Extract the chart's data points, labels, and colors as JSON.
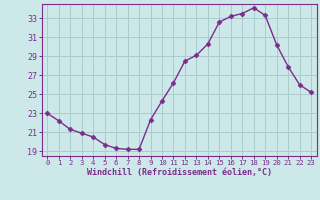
{
  "x": [
    0,
    1,
    2,
    3,
    4,
    5,
    6,
    7,
    8,
    9,
    10,
    11,
    12,
    13,
    14,
    15,
    16,
    17,
    18,
    19,
    20,
    21,
    22,
    23
  ],
  "y": [
    23.0,
    22.2,
    21.3,
    20.9,
    20.5,
    19.7,
    19.3,
    19.2,
    19.2,
    22.3,
    24.3,
    26.2,
    28.5,
    29.1,
    30.3,
    32.6,
    33.2,
    33.5,
    34.1,
    33.3,
    30.2,
    27.9,
    26.0,
    25.2
  ],
  "line_color": "#7b2d8b",
  "marker": "D",
  "marker_size": 2.5,
  "bg_color": "#cce8e8",
  "grid_color": "#aacccc",
  "xlabel": "Windchill (Refroidissement éolien,°C)",
  "xlim": [
    -0.5,
    23.5
  ],
  "ylim": [
    18.5,
    34.5
  ],
  "yticks": [
    19,
    21,
    23,
    25,
    27,
    29,
    31,
    33
  ],
  "xticks": [
    0,
    1,
    2,
    3,
    4,
    5,
    6,
    7,
    8,
    9,
    10,
    11,
    12,
    13,
    14,
    15,
    16,
    17,
    18,
    19,
    20,
    21,
    22,
    23
  ],
  "tick_color": "#7b2d8b",
  "label_color": "#7b2d8b",
  "spine_color": "#7b2d8b"
}
